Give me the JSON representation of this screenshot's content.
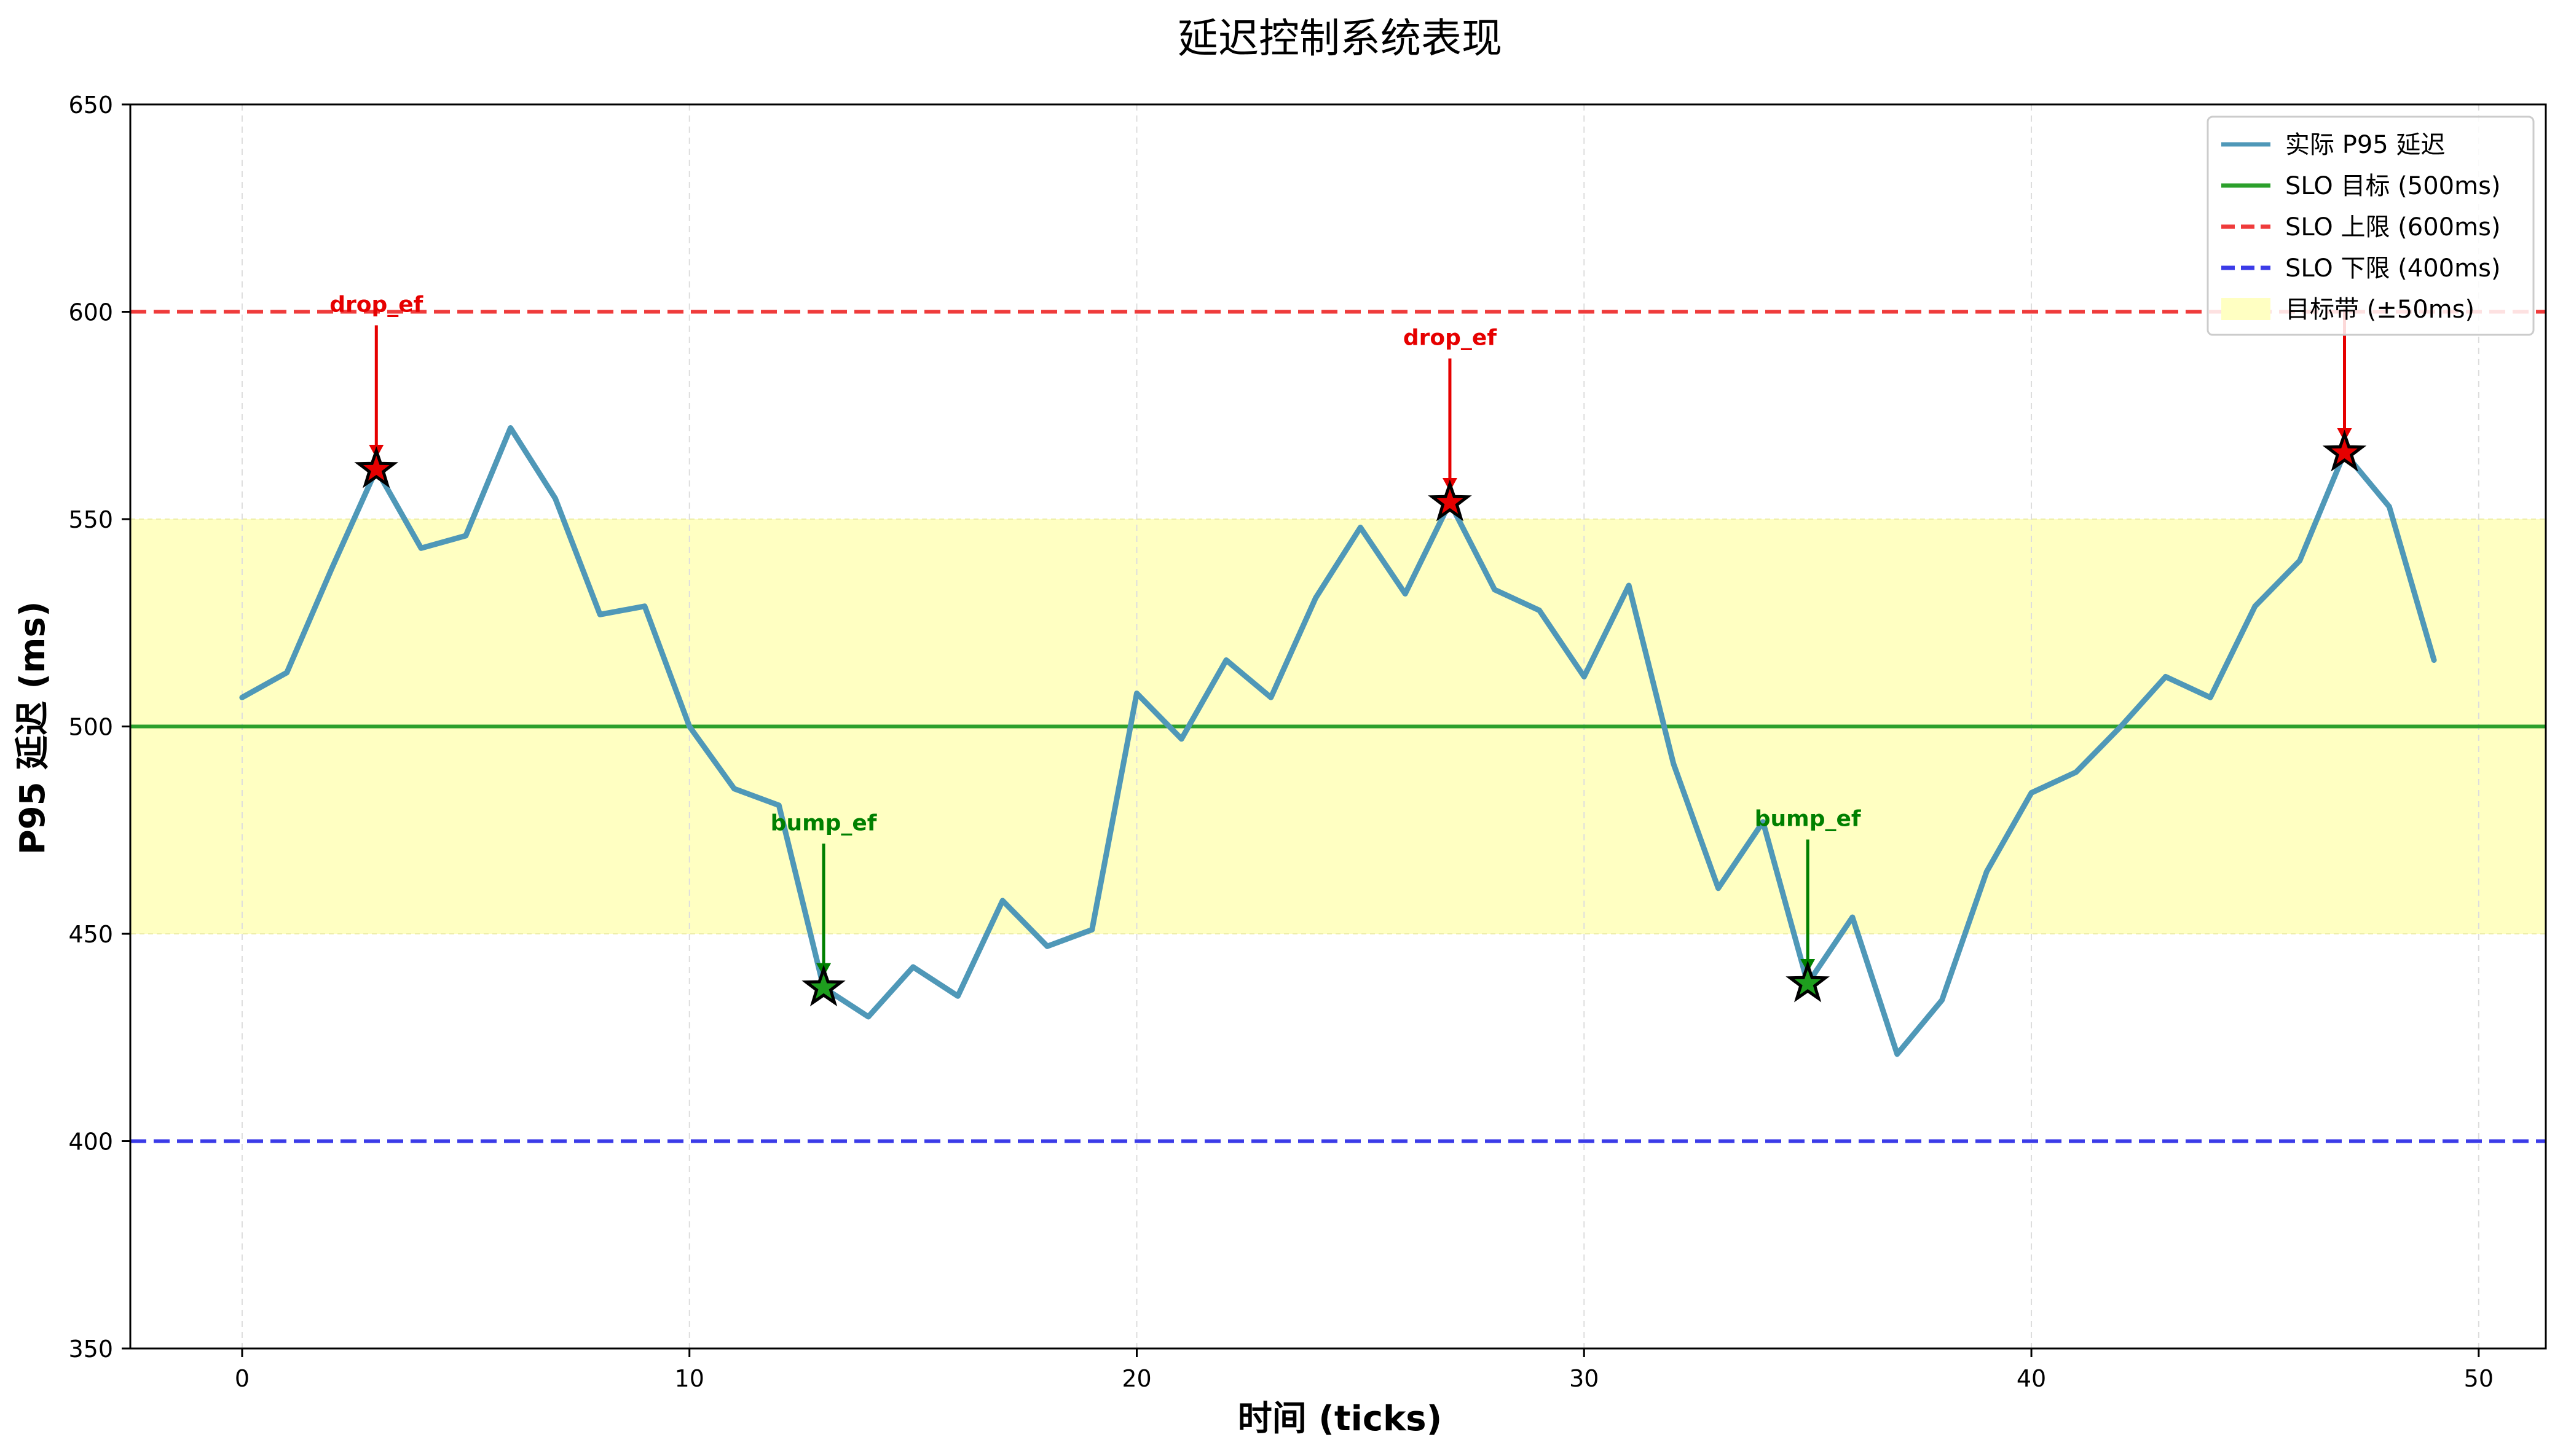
{
  "chart_data": {
    "type": "line",
    "title": "延迟控制系统表现",
    "xlabel": "时间 (ticks)",
    "ylabel": "P95 延迟 (ms)",
    "xlim": [
      -2.5,
      51.5
    ],
    "ylim": [
      350,
      650
    ],
    "xticks": [
      0,
      10,
      20,
      30,
      40,
      50
    ],
    "yticks": [
      350,
      400,
      450,
      500,
      550,
      600,
      650
    ],
    "grid": "vertical dashed",
    "legend_position": "top-right",
    "series": [
      {
        "name": "实际 P95 延迟",
        "color": "#4f98b8",
        "x": [
          0,
          1,
          2,
          3,
          4,
          5,
          6,
          7,
          8,
          9,
          10,
          11,
          12,
          13,
          14,
          15,
          16,
          17,
          18,
          19,
          20,
          21,
          22,
          23,
          24,
          25,
          26,
          27,
          28,
          29,
          30,
          31,
          32,
          33,
          34,
          35,
          36,
          37,
          38,
          39,
          40,
          41,
          42,
          43,
          44,
          45,
          46,
          47,
          48,
          49
        ],
        "values": [
          507,
          513,
          538,
          562,
          543,
          546,
          572,
          555,
          527,
          529,
          500,
          485,
          481,
          437,
          430,
          442,
          435,
          458,
          447,
          451,
          508,
          497,
          516,
          507,
          531,
          548,
          532,
          554,
          533,
          528,
          512,
          534,
          491,
          461,
          477,
          438,
          454,
          421,
          434,
          465,
          484,
          489,
          500,
          512,
          507,
          529,
          540,
          566,
          553,
          516
        ]
      }
    ],
    "reference_lines": [
      {
        "name": "SLO 目标 (500ms)",
        "y": 500,
        "color": "#2ca02c",
        "style": "solid"
      },
      {
        "name": "SLO 上限 (600ms)",
        "y": 600,
        "color": "#ef3b3b",
        "style": "dashed"
      },
      {
        "name": "SLO 下限 (400ms)",
        "y": 400,
        "color": "#3b3be8",
        "style": "dashed"
      }
    ],
    "band": {
      "name": "目标带 (±50ms)",
      "y0": 450,
      "y1": 550,
      "color": "#ffffc2"
    },
    "annotations": [
      {
        "label": "drop_ef",
        "x": 3,
        "y": 562,
        "label_y": 600,
        "color": "#e60000",
        "marker_color": "#e60000"
      },
      {
        "label": "bump_ef",
        "x": 13,
        "y": 437,
        "label_y": 475,
        "color": "#008000",
        "marker_color": "#1e9e1e"
      },
      {
        "label": "drop_ef",
        "x": 27,
        "y": 554,
        "label_y": 592,
        "color": "#e60000",
        "marker_color": "#e60000"
      },
      {
        "label": "bump_ef",
        "x": 35,
        "y": 438,
        "label_y": 476,
        "color": "#008000",
        "marker_color": "#1e9e1e"
      },
      {
        "label": "",
        "x": 47,
        "y": 566,
        "label_y": 604,
        "color": "#e60000",
        "marker_color": "#e60000"
      }
    ]
  }
}
